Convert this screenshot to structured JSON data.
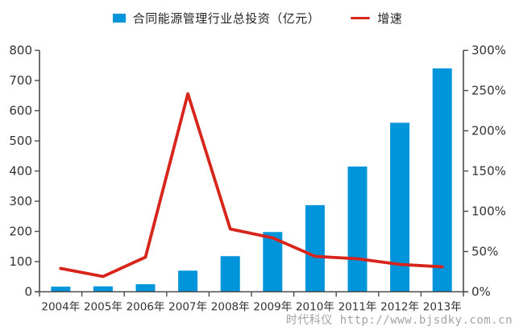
{
  "legend": {
    "investment": {
      "label": "合同能源管理行业总投资（亿元）",
      "color": "#0095DB",
      "marker": "square"
    },
    "growth": {
      "label": "增速",
      "color": "#D8251C",
      "marker": "line"
    }
  },
  "watermark": "时代科仪 http://www.bjsdky.com.cn",
  "chart_data": {
    "type": "combo",
    "categories": [
      "2004年",
      "2005年",
      "2006年",
      "2007年",
      "2008年",
      "2009年",
      "2010年",
      "2011年",
      "2012年",
      "2013年"
    ],
    "series": [
      {
        "name": "合同能源管理行业总投资（亿元）",
        "type": "bar",
        "axis": "left",
        "color": "#0095DB",
        "values": [
          17,
          18,
          25,
          70,
          118,
          198,
          287,
          415,
          560,
          740
        ]
      },
      {
        "name": "增速",
        "type": "line",
        "axis": "right",
        "color": "#D8251C",
        "unit": "%",
        "values": [
          29,
          19,
          43,
          246,
          78,
          67,
          44,
          41,
          34,
          31
        ]
      }
    ],
    "y_left": {
      "min": 0,
      "max": 800,
      "step": 100,
      "tick_labels": [
        "0",
        "100",
        "200",
        "300",
        "400",
        "500",
        "600",
        "700",
        "800"
      ]
    },
    "y_right": {
      "min": 0,
      "max": 300,
      "step": 50,
      "suffix": "%",
      "tick_labels": [
        "0%",
        "50%",
        "100%",
        "150%",
        "200%",
        "250%",
        "300%"
      ]
    },
    "grid": false,
    "legend_position": "top",
    "title": ""
  }
}
